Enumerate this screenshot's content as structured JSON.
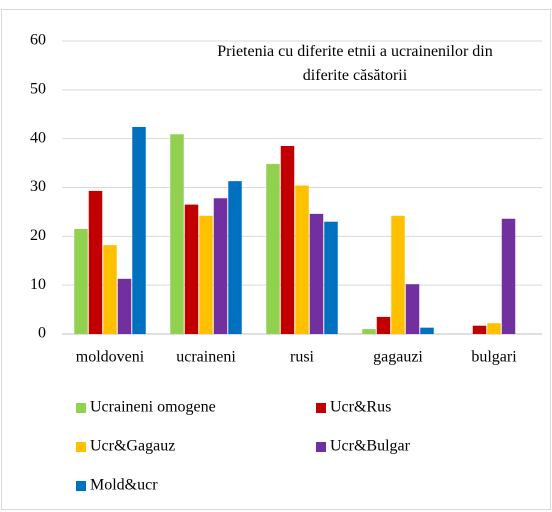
{
  "chart_data": {
    "type": "bar",
    "title": "Prietenia cu diferite etnii a ucrainenilor din diferite căsătorii",
    "categories": [
      "moldoveni",
      "ucraineni",
      "rusi",
      "gagauzi",
      "bulgari"
    ],
    "series": [
      {
        "name": "Ucraineni omogene",
        "color": "#92d050",
        "values": [
          21.5,
          40.9,
          34.8,
          1.0,
          null
        ]
      },
      {
        "name": "Ucr&Rus",
        "color": "#c00000",
        "values": [
          29.3,
          26.5,
          38.5,
          3.5,
          1.7
        ]
      },
      {
        "name": "Ucr&Gagauz",
        "color": "#ffc000",
        "values": [
          18.2,
          24.2,
          30.4,
          24.2,
          2.2
        ]
      },
      {
        "name": "Ucr&Bulgar",
        "color": "#7030a0",
        "values": [
          11.3,
          27.8,
          24.6,
          10.2,
          23.6
        ]
      },
      {
        "name": "Mold&ucr",
        "color": "#0070c0",
        "values": [
          42.4,
          31.3,
          23.0,
          1.3,
          null
        ]
      }
    ],
    "ylim": [
      0,
      60
    ],
    "yticks": [
      0,
      10,
      20,
      30,
      40,
      50,
      60
    ],
    "grid": true,
    "legend": "bottom"
  }
}
